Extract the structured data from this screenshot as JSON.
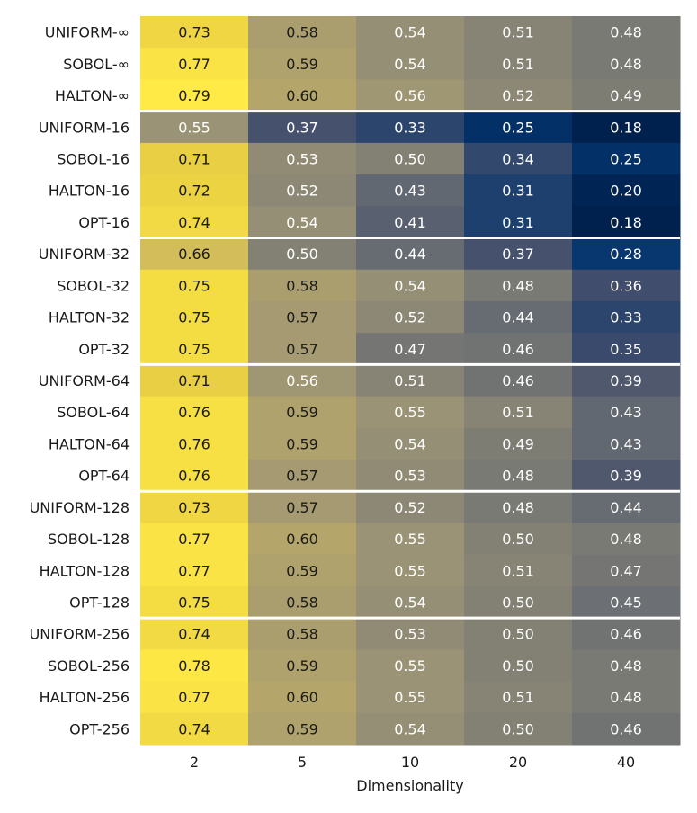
{
  "chart_data": {
    "type": "heatmap",
    "title": "",
    "xlabel": "Dimensionality",
    "ylabel": "",
    "categories": [
      "2",
      "5",
      "10",
      "20",
      "40"
    ],
    "colormap": "cividis",
    "value_range": [
      0.18,
      0.79
    ],
    "group_separators_after_rows": [
      2,
      6,
      10,
      14,
      18
    ],
    "rows": [
      {
        "label": "UNIFORM-∞",
        "values": [
          0.73,
          0.58,
          0.54,
          0.51,
          0.48
        ]
      },
      {
        "label": "SOBOL-∞",
        "values": [
          0.77,
          0.59,
          0.54,
          0.51,
          0.48
        ]
      },
      {
        "label": "HALTON-∞",
        "values": [
          0.79,
          0.6,
          0.56,
          0.52,
          0.49
        ]
      },
      {
        "label": "UNIFORM-16",
        "values": [
          0.55,
          0.37,
          0.33,
          0.25,
          0.18
        ]
      },
      {
        "label": "SOBOL-16",
        "values": [
          0.71,
          0.53,
          0.5,
          0.34,
          0.25
        ]
      },
      {
        "label": "HALTON-16",
        "values": [
          0.72,
          0.52,
          0.43,
          0.31,
          0.2
        ]
      },
      {
        "label": "OPT-16",
        "values": [
          0.74,
          0.54,
          0.41,
          0.31,
          0.18
        ]
      },
      {
        "label": "UNIFORM-32",
        "values": [
          0.66,
          0.5,
          0.44,
          0.37,
          0.28
        ]
      },
      {
        "label": "SOBOL-32",
        "values": [
          0.75,
          0.58,
          0.54,
          0.48,
          0.36
        ]
      },
      {
        "label": "HALTON-32",
        "values": [
          0.75,
          0.57,
          0.52,
          0.44,
          0.33
        ]
      },
      {
        "label": "OPT-32",
        "values": [
          0.75,
          0.57,
          0.47,
          0.46,
          0.35
        ]
      },
      {
        "label": "UNIFORM-64",
        "values": [
          0.71,
          0.56,
          0.51,
          0.46,
          0.39
        ]
      },
      {
        "label": "SOBOL-64",
        "values": [
          0.76,
          0.59,
          0.55,
          0.51,
          0.43
        ]
      },
      {
        "label": "HALTON-64",
        "values": [
          0.76,
          0.59,
          0.54,
          0.49,
          0.43
        ]
      },
      {
        "label": "OPT-64",
        "values": [
          0.76,
          0.57,
          0.53,
          0.48,
          0.39
        ]
      },
      {
        "label": "UNIFORM-128",
        "values": [
          0.73,
          0.57,
          0.52,
          0.48,
          0.44
        ]
      },
      {
        "label": "SOBOL-128",
        "values": [
          0.77,
          0.6,
          0.55,
          0.5,
          0.48
        ]
      },
      {
        "label": "HALTON-128",
        "values": [
          0.77,
          0.59,
          0.55,
          0.51,
          0.47
        ]
      },
      {
        "label": "OPT-128",
        "values": [
          0.75,
          0.58,
          0.54,
          0.5,
          0.45
        ]
      },
      {
        "label": "UNIFORM-256",
        "values": [
          0.74,
          0.58,
          0.53,
          0.5,
          0.46
        ]
      },
      {
        "label": "SOBOL-256",
        "values": [
          0.78,
          0.59,
          0.55,
          0.5,
          0.48
        ]
      },
      {
        "label": "HALTON-256",
        "values": [
          0.77,
          0.6,
          0.55,
          0.51,
          0.48
        ]
      },
      {
        "label": "OPT-256",
        "values": [
          0.74,
          0.59,
          0.54,
          0.5,
          0.46
        ]
      }
    ]
  }
}
